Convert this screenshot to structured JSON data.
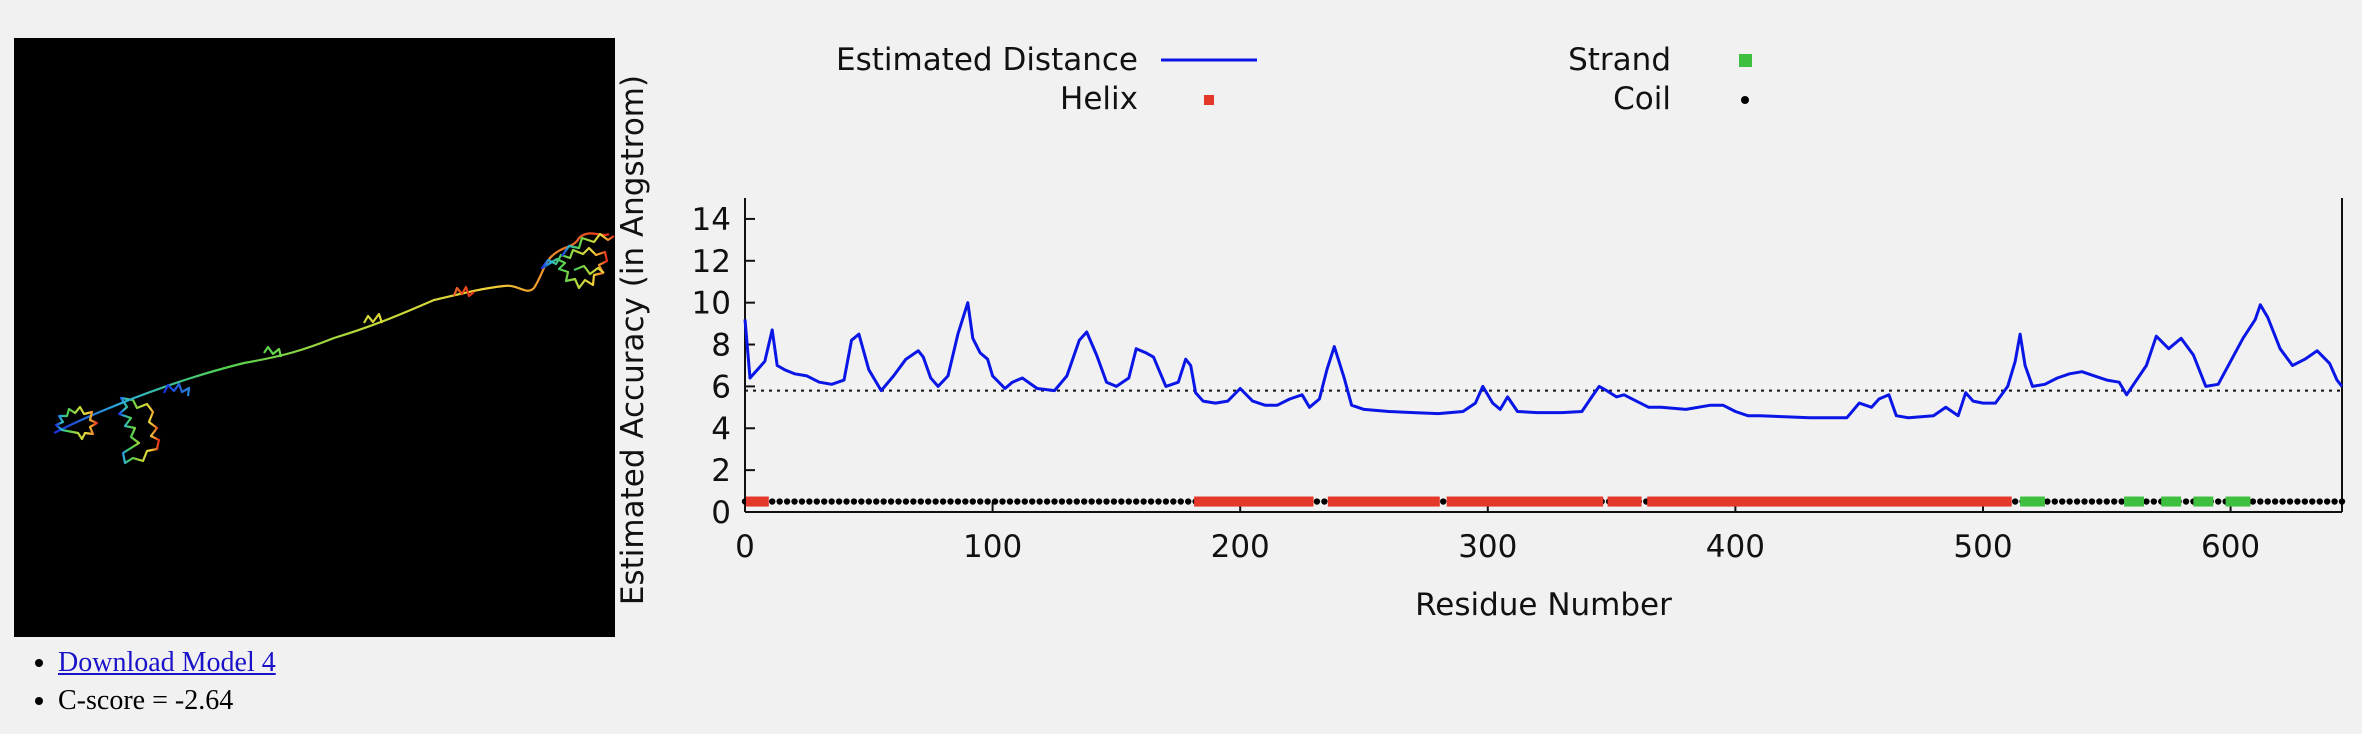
{
  "model": {
    "download_label": "Download Model 4",
    "cscore_text": "C-score = -2.64"
  },
  "colors": {
    "estimated_distance": "#0a16e6",
    "helix": "#e3382a",
    "strand": "#3fbf3f",
    "coil": "#000000",
    "link": "#1a12c8"
  },
  "chart_data": {
    "type": "line",
    "xlabel": "Residue Number",
    "ylabel": "Estimated Accuracy (in Angstrom)",
    "xlim": [
      0,
      645
    ],
    "ylim": [
      0,
      15
    ],
    "xticks": [
      0,
      100,
      200,
      300,
      400,
      500,
      600
    ],
    "yticks": [
      0,
      2,
      4,
      6,
      8,
      10,
      12,
      14
    ],
    "legend_position": "top",
    "grid": false,
    "legend": [
      {
        "label": "Estimated Distance",
        "kind": "line"
      },
      {
        "label": "Strand",
        "kind": "square"
      },
      {
        "label": "Helix",
        "kind": "dot"
      },
      {
        "label": "Coil",
        "kind": "dot"
      }
    ],
    "reference_line": 5.8,
    "series": [
      {
        "name": "Estimated Distance",
        "x": [
          0,
          2,
          5,
          8,
          11,
          13,
          16,
          20,
          25,
          30,
          35,
          40,
          43,
          46,
          50,
          55,
          60,
          65,
          70,
          72,
          75,
          78,
          82,
          86,
          90,
          92,
          95,
          98,
          100,
          105,
          108,
          112,
          118,
          125,
          130,
          135,
          138,
          142,
          146,
          150,
          155,
          158,
          162,
          165,
          170,
          175,
          178,
          180,
          182,
          185,
          190,
          195,
          200,
          205,
          210,
          215,
          220,
          225,
          228,
          232,
          235,
          238,
          242,
          245,
          250,
          260,
          270,
          280,
          290,
          295,
          298,
          302,
          305,
          308,
          312,
          320,
          330,
          338,
          342,
          345,
          348,
          352,
          355,
          360,
          365,
          370,
          380,
          390,
          395,
          400,
          405,
          410,
          420,
          430,
          440,
          445,
          450,
          455,
          458,
          462,
          465,
          470,
          475,
          480,
          485,
          490,
          493,
          496,
          500,
          505,
          510,
          513,
          515,
          517,
          520,
          525,
          530,
          535,
          540,
          545,
          550,
          555,
          558,
          562,
          566,
          570,
          575,
          580,
          585,
          590,
          595,
          600,
          605,
          610,
          612,
          615,
          620,
          625,
          630,
          635,
          640,
          643,
          645
        ],
        "y": [
          9.2,
          6.4,
          6.8,
          7.2,
          8.7,
          7.0,
          6.8,
          6.6,
          6.5,
          6.2,
          6.1,
          6.3,
          8.2,
          8.5,
          6.8,
          5.8,
          6.5,
          7.3,
          7.7,
          7.4,
          6.4,
          6.0,
          6.5,
          8.5,
          10.0,
          8.3,
          7.6,
          7.3,
          6.5,
          5.9,
          6.2,
          6.4,
          5.9,
          5.8,
          6.5,
          8.2,
          8.6,
          7.5,
          6.2,
          6.0,
          6.4,
          7.8,
          7.6,
          7.4,
          6.0,
          6.2,
          7.3,
          7.0,
          5.7,
          5.3,
          5.2,
          5.3,
          5.9,
          5.3,
          5.1,
          5.1,
          5.4,
          5.6,
          5.0,
          5.4,
          6.8,
          7.9,
          6.4,
          5.1,
          4.9,
          4.8,
          4.75,
          4.7,
          4.8,
          5.2,
          6.0,
          5.2,
          4.9,
          5.5,
          4.8,
          4.75,
          4.75,
          4.8,
          5.5,
          6.0,
          5.8,
          5.5,
          5.6,
          5.3,
          5.0,
          5.0,
          4.9,
          5.1,
          5.1,
          4.8,
          4.6,
          4.6,
          4.55,
          4.5,
          4.5,
          4.5,
          5.2,
          5.0,
          5.4,
          5.6,
          4.6,
          4.5,
          4.55,
          4.6,
          5.0,
          4.6,
          5.7,
          5.3,
          5.2,
          5.2,
          6.0,
          7.2,
          8.5,
          7.0,
          6.0,
          6.1,
          6.4,
          6.6,
          6.7,
          6.5,
          6.3,
          6.2,
          5.6,
          6.3,
          7.0,
          8.4,
          7.8,
          8.3,
          7.5,
          6.0,
          6.1,
          7.2,
          8.3,
          9.2,
          9.9,
          9.3,
          7.8,
          7.0,
          7.3,
          7.7,
          7.1,
          6.3,
          6.0
        ]
      }
    ],
    "secondary_structure": {
      "baseline_y": 0.5,
      "helix_segments": [
        [
          2,
          8
        ],
        [
          183,
          228
        ],
        [
          237,
          279
        ],
        [
          285,
          346
        ],
        [
          350,
          361
        ],
        [
          366,
          510
        ]
      ],
      "strand_segments": [
        [
          517,
          523
        ],
        [
          559,
          563
        ],
        [
          574,
          579
        ],
        [
          587,
          592
        ],
        [
          600,
          606
        ]
      ],
      "coil_segments": [
        [
          0,
          2
        ],
        [
          8,
          183
        ],
        [
          228,
          237
        ],
        [
          279,
          285
        ],
        [
          346,
          350
        ],
        [
          361,
          366
        ],
        [
          510,
          517
        ],
        [
          523,
          559
        ],
        [
          563,
          574
        ],
        [
          579,
          587
        ],
        [
          592,
          600
        ],
        [
          606,
          645
        ]
      ]
    }
  }
}
